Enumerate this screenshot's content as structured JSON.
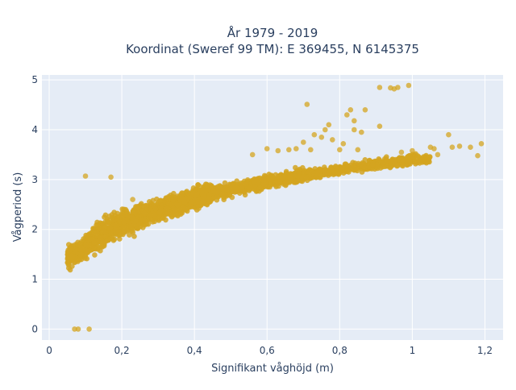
{
  "chart_data": {
    "type": "scatter",
    "title_line1": "År 1979 - 2019",
    "title_line2": "Koordinat (Sweref 99 TM): E 369455, N 6145375",
    "xlabel": "Signifikant våghöjd (m)",
    "ylabel": "Vågperiod (s)",
    "xlim": [
      -0.02,
      1.25
    ],
    "ylim": [
      -0.22,
      5.1
    ],
    "x_ticks": [
      0,
      0.2,
      0.4,
      0.6,
      0.8,
      1,
      1.2
    ],
    "x_tick_labels": [
      "0",
      "0,2",
      "0,4",
      "0,6",
      "0,8",
      "1",
      "1,2"
    ],
    "y_ticks": [
      0,
      1,
      2,
      3,
      4,
      5
    ],
    "y_tick_labels": [
      "0",
      "1",
      "2",
      "3",
      "4",
      "5"
    ],
    "grid": true,
    "colors": {
      "marker": "#d4a520",
      "plot_bg": "#e5ecf6",
      "grid": "#ffffff",
      "text": "#2a3f5f"
    },
    "series": [
      {
        "marker_color": "#d4a520",
        "dense_band": [
          [
            0.04,
            1.42
          ],
          [
            0.06,
            1.47
          ],
          [
            0.08,
            1.52
          ],
          [
            0.1,
            1.65
          ],
          [
            0.12,
            1.8
          ],
          [
            0.15,
            1.95
          ],
          [
            0.18,
            2.05
          ],
          [
            0.2,
            2.12
          ],
          [
            0.25,
            2.25
          ],
          [
            0.3,
            2.38
          ],
          [
            0.35,
            2.5
          ],
          [
            0.4,
            2.62
          ],
          [
            0.45,
            2.72
          ],
          [
            0.5,
            2.8
          ],
          [
            0.55,
            2.88
          ],
          [
            0.6,
            2.95
          ],
          [
            0.65,
            3.02
          ],
          [
            0.7,
            3.08
          ],
          [
            0.75,
            3.14
          ],
          [
            0.8,
            3.2
          ],
          [
            0.85,
            3.26
          ],
          [
            0.9,
            3.3
          ],
          [
            0.95,
            3.35
          ],
          [
            1.0,
            3.4
          ]
        ],
        "outlier_points": [
          [
            0.07,
            0.0
          ],
          [
            0.08,
            0.0
          ],
          [
            0.11,
            0.0
          ],
          [
            0.1,
            3.07
          ],
          [
            0.17,
            3.05
          ],
          [
            0.23,
            2.6
          ],
          [
            0.56,
            3.5
          ],
          [
            0.6,
            3.62
          ],
          [
            0.63,
            3.58
          ],
          [
            0.66,
            3.6
          ],
          [
            0.68,
            3.62
          ],
          [
            0.7,
            3.75
          ],
          [
            0.72,
            3.6
          ],
          [
            0.71,
            4.51
          ],
          [
            0.73,
            3.9
          ],
          [
            0.75,
            3.85
          ],
          [
            0.76,
            4.0
          ],
          [
            0.77,
            4.1
          ],
          [
            0.78,
            3.8
          ],
          [
            0.8,
            3.6
          ],
          [
            0.81,
            3.72
          ],
          [
            0.82,
            4.3
          ],
          [
            0.83,
            4.4
          ],
          [
            0.84,
            4.18
          ],
          [
            0.84,
            4.0
          ],
          [
            0.85,
            3.6
          ],
          [
            0.86,
            3.95
          ],
          [
            0.87,
            4.4
          ],
          [
            0.91,
            4.07
          ],
          [
            0.91,
            4.85
          ],
          [
            0.94,
            4.84
          ],
          [
            0.95,
            4.82
          ],
          [
            0.96,
            4.85
          ],
          [
            0.99,
            4.89
          ],
          [
            0.97,
            3.55
          ],
          [
            1.0,
            3.58
          ],
          [
            1.05,
            3.65
          ],
          [
            1.06,
            3.62
          ],
          [
            1.07,
            3.5
          ],
          [
            1.1,
            3.9
          ],
          [
            1.11,
            3.65
          ],
          [
            1.13,
            3.67
          ],
          [
            1.16,
            3.65
          ],
          [
            1.18,
            3.48
          ],
          [
            1.19,
            3.72
          ]
        ]
      }
    ]
  }
}
